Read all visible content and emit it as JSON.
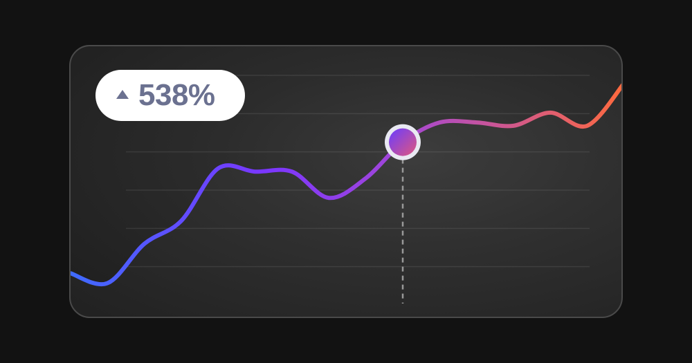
{
  "badge": {
    "value": "538%",
    "icon": "triangle-up-icon"
  },
  "colors": {
    "background": "#121212",
    "line_start": "#3f6bff",
    "line_mid": "#7a36ff",
    "line_end": "#ff6a3d",
    "badge_text": "#6b7190"
  },
  "chart_data": {
    "type": "line",
    "x": [
      0,
      1,
      2,
      3,
      4,
      5,
      6,
      7,
      8,
      9,
      10,
      11,
      12,
      13,
      14,
      15
    ],
    "series": [
      {
        "values": [
          0.5,
          0.2,
          1.4,
          2.1,
          3.7,
          3.6,
          3.6,
          2.8,
          3.4,
          4.5,
          5.1,
          5.1,
          5.0,
          5.4,
          5.0,
          6.3
        ]
      }
    ],
    "ylim": [
      0,
      7
    ],
    "grid": true,
    "highlight_index": 9
  }
}
